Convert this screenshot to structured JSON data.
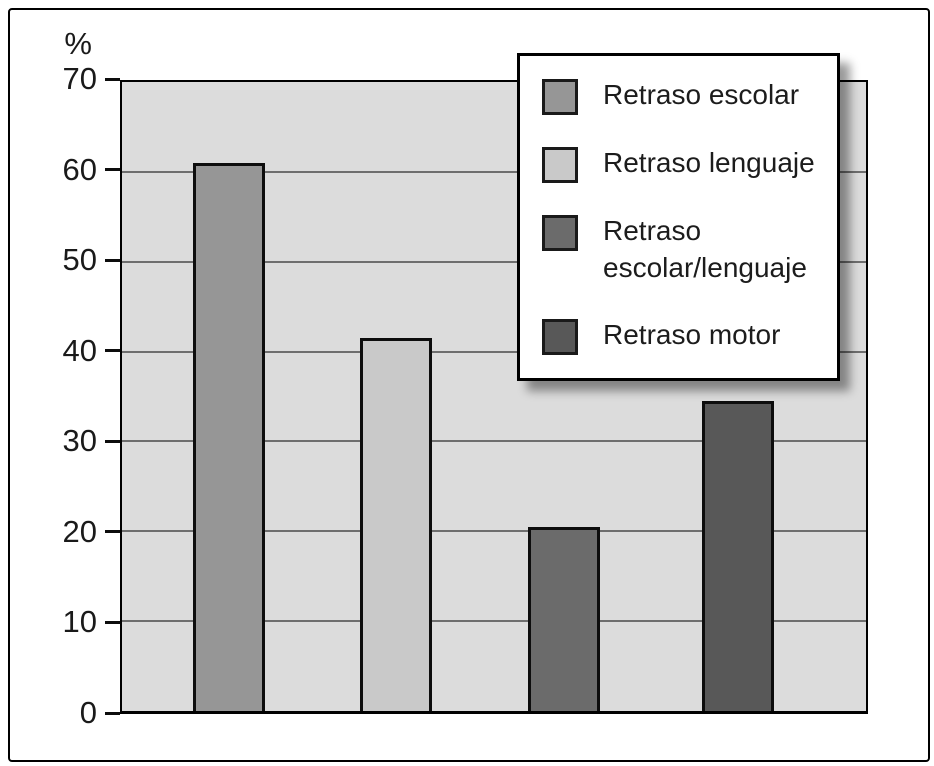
{
  "chart_data": {
    "type": "bar",
    "title": "",
    "xlabel": "",
    "ylabel": "%",
    "ylim": [
      0,
      70
    ],
    "yticks": [
      0,
      10,
      20,
      30,
      40,
      50,
      60,
      70
    ],
    "grid": "horizontal gridlines every 10",
    "legend_position": "top-right overlay",
    "categories": [
      "Retraso escolar",
      "Retraso lenguaje",
      "Retraso escolar/lenguaje",
      "Retraso motor"
    ],
    "values": [
      61,
      41.5,
      20.5,
      34.5
    ],
    "bar_colors": [
      "#969696",
      "#c9c9c9",
      "#6b6b6b",
      "#585858"
    ],
    "legend_labels": [
      "Retraso escolar",
      "Retraso lenguaje",
      "Retraso escolar/lenguaje",
      "Retraso motor"
    ],
    "plot_bg_color": "#dcdcdc",
    "gridline_color": "#6e6e6e",
    "outline_color": "#000000",
    "legend_bg_color": "#ffffff"
  }
}
